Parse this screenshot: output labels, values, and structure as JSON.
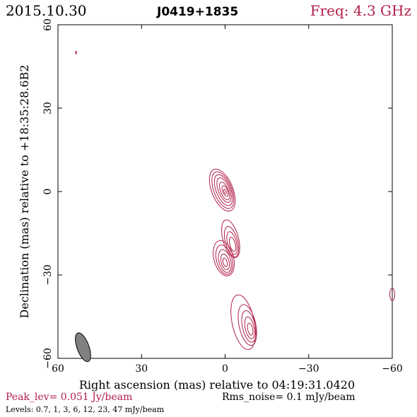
{
  "header": {
    "date": "2015.10.30",
    "source": "J0419+1835",
    "freq": "Freq: 4.3 GHz"
  },
  "footer": {
    "peak": "Peak_lev=  0.051 Jy/beam",
    "rms": "Rms_noise=  0.1 mJy/beam",
    "levels": "Levels: 0.7,   1,   3,   6,  12,  23,  47 mJy/beam"
  },
  "colors": {
    "contour": "#b0204a",
    "header_freq": "#b0204a",
    "beam_fill": "#808080",
    "axis": "#000000"
  },
  "chart_data": {
    "type": "contour",
    "xlabel": "Right ascension (mas) relative to 04:19:31.0420",
    "ylabel": "Declination (mas) relative to +18:35:28.6B2",
    "xlim": [
      60,
      -60
    ],
    "ylim": [
      -60,
      60
    ],
    "xticks": [
      60,
      30,
      0,
      -30,
      -60
    ],
    "yticks": [
      60,
      30,
      0,
      -30,
      -60
    ],
    "xtick_labels": [
      "60",
      "30",
      "0",
      "−30",
      "−60"
    ],
    "ytick_labels": [
      "60",
      "30",
      "0",
      "−30",
      "−60"
    ],
    "levels_mJy": [
      0.7,
      1,
      3,
      6,
      12,
      23,
      47
    ],
    "peak_Jy_per_beam": 0.051,
    "rms_mJy_per_beam": 0.1,
    "beam": {
      "ra": 51,
      "dec": -56,
      "major": 6,
      "minor": 3,
      "pa_deg": 20
    },
    "components": [
      {
        "name": "core",
        "contours": [
          {
            "ra": 1.0,
            "dec": 0.5,
            "rx": 3.8,
            "ry": 8.0,
            "rot": -22
          },
          {
            "ra": 0.8,
            "dec": 0.5,
            "rx": 3.2,
            "ry": 7.0,
            "rot": -22
          },
          {
            "ra": 0.6,
            "dec": 0.5,
            "rx": 2.6,
            "ry": 5.9,
            "rot": -22
          },
          {
            "ra": 0.4,
            "dec": 0.5,
            "rx": 2.0,
            "ry": 4.7,
            "rot": -22
          },
          {
            "ra": 0.2,
            "dec": 0.2,
            "rx": 1.4,
            "ry": 3.4,
            "rot": -22
          },
          {
            "ra": 0.0,
            "dec": 0.2,
            "rx": 0.9,
            "ry": 2.0,
            "rot": -22
          },
          {
            "ra": 0.0,
            "dec": 0.0,
            "rx": 0.4,
            "ry": 0.9,
            "rot": -22
          }
        ]
      },
      {
        "name": "jet-north",
        "contours": [
          {
            "ra": -2.0,
            "dec": -17.0,
            "rx": 2.8,
            "ry": 7.0,
            "rot": -15
          },
          {
            "ra": -2.3,
            "dec": -18.0,
            "rx": 2.2,
            "ry": 5.6,
            "rot": -15
          },
          {
            "ra": -2.5,
            "dec": -18.5,
            "rx": 1.6,
            "ry": 4.2,
            "rot": -15
          },
          {
            "ra": -2.7,
            "dec": -19.0,
            "rx": 1.0,
            "ry": 2.6,
            "rot": -15
          }
        ]
      },
      {
        "name": "jet-middle",
        "contours": [
          {
            "ra": 0.5,
            "dec": -24.0,
            "rx": 3.5,
            "ry": 6.5,
            "rot": -15
          },
          {
            "ra": 0.3,
            "dec": -24.5,
            "rx": 2.8,
            "ry": 5.4,
            "rot": -15
          },
          {
            "ra": 0.1,
            "dec": -25.0,
            "rx": 2.1,
            "ry": 4.2,
            "rot": -15
          },
          {
            "ra": 0.0,
            "dec": -25.3,
            "rx": 1.4,
            "ry": 2.9,
            "rot": -15
          },
          {
            "ra": 0.0,
            "dec": -25.5,
            "rx": 0.7,
            "ry": 1.6,
            "rot": -15
          }
        ]
      },
      {
        "name": "jet-south",
        "contours": [
          {
            "ra": -6.5,
            "dec": -47.0,
            "rx": 4.0,
            "ry": 10.0,
            "rot": -12
          },
          {
            "ra": -8.0,
            "dec": -48.0,
            "rx": 3.0,
            "ry": 7.5,
            "rot": -12
          },
          {
            "ra": -8.5,
            "dec": -48.5,
            "rx": 2.3,
            "ry": 5.8,
            "rot": -12
          },
          {
            "ra": -8.8,
            "dec": -49.0,
            "rx": 1.6,
            "ry": 4.0,
            "rot": -12
          },
          {
            "ra": -9.0,
            "dec": -49.5,
            "rx": 0.9,
            "ry": 2.2,
            "rot": -12
          }
        ]
      },
      {
        "name": "edge-feature",
        "contours": [
          {
            "ra": -60.0,
            "dec": -37.0,
            "rx": 0.9,
            "ry": 2.2,
            "rot": 0
          }
        ]
      },
      {
        "name": "noise-spike",
        "contours": [
          {
            "ra": 53.5,
            "dec": 50.0,
            "rx": 0.2,
            "ry": 0.5,
            "rot": 0
          }
        ]
      }
    ]
  }
}
